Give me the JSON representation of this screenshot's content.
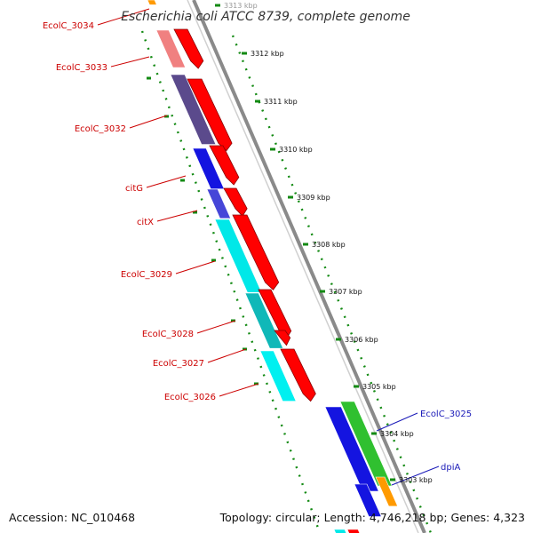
{
  "title": "Escherichia coli ATCC 8739, complete genome",
  "footer": {
    "accession": "Accession: NC_010468",
    "summary": "Topology: circular; Length: 4,746,218 bp; Genes: 4,323"
  },
  "colors": {
    "forward_cds": "#ff0000",
    "ruler": "#138a13",
    "backbone": "#8a8a8a",
    "label_red": "#cc0000",
    "label_blue": "#1a1ab8"
  },
  "kbp_ticks": [
    "3313 kbp",
    "3312 kbp",
    "3311 kbp",
    "3310 kbp",
    "3309 kbp",
    "3308 kbp",
    "3307 kbp",
    "3306 kbp",
    "3305 kbp",
    "3304 kbp",
    "3303 kbp"
  ],
  "gene_labels": [
    {
      "text": "EcolC_3034",
      "color": "#cc0000"
    },
    {
      "text": "EcolC_3033",
      "color": "#cc0000"
    },
    {
      "text": "EcolC_3032",
      "color": "#cc0000"
    },
    {
      "text": "citG",
      "color": "#cc0000"
    },
    {
      "text": "citX",
      "color": "#cc0000"
    },
    {
      "text": "EcolC_3029",
      "color": "#cc0000"
    },
    {
      "text": "EcolC_3028",
      "color": "#cc0000"
    },
    {
      "text": "EcolC_3027",
      "color": "#cc0000"
    },
    {
      "text": "EcolC_3026",
      "color": "#cc0000"
    },
    {
      "text": "EcolC_3025",
      "color": "#1a1ab8"
    },
    {
      "text": "dpiA",
      "color": "#1a1ab8"
    }
  ],
  "reverse_track": [
    "#f08080",
    "#5b4a8c",
    "#1414e0",
    "#4646d8",
    "#00e8e8",
    "#10b8b8",
    "#00f0f0"
  ],
  "right_tracks": {
    "blue": "#1414e0",
    "green": "#30c030",
    "orange": "#ff9a00"
  }
}
